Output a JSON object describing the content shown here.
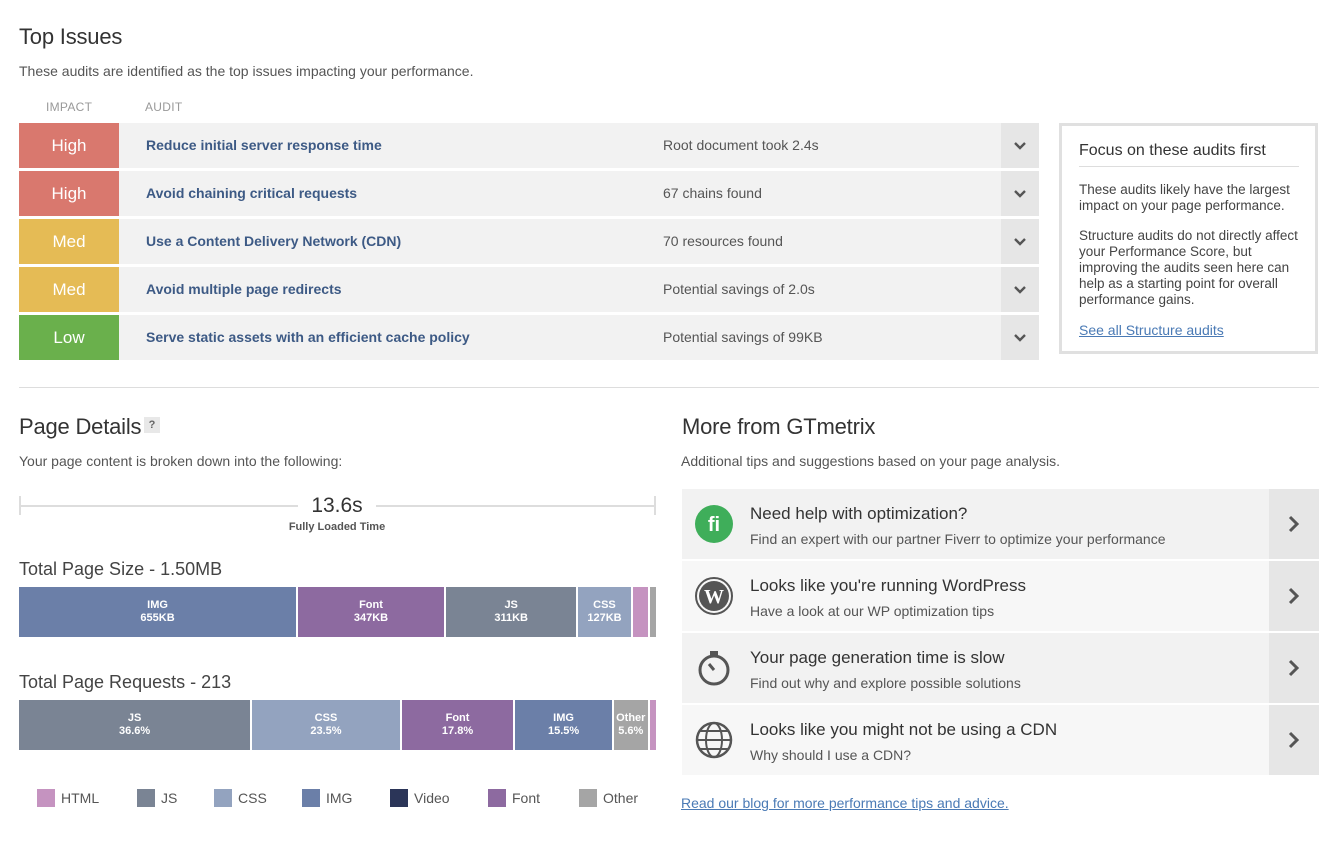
{
  "top_issues": {
    "title": "Top Issues",
    "description": "These audits are identified as the top issues impacting your performance.",
    "col_impact": "IMPACT",
    "col_audit": "AUDIT",
    "rows": [
      {
        "impact": "High",
        "audit": "Reduce initial server response time",
        "detail": "Root document took 2.4s",
        "color": "#d9786e"
      },
      {
        "impact": "High",
        "audit": "Avoid chaining critical requests",
        "detail": "67 chains found",
        "color": "#d9786e"
      },
      {
        "impact": "Med",
        "audit": "Use a Content Delivery Network (CDN)",
        "detail": "70 resources found",
        "color": "#e5bb55"
      },
      {
        "impact": "Med",
        "audit": "Avoid multiple page redirects",
        "detail": "Potential savings of 2.0s",
        "color": "#e5bb55"
      },
      {
        "impact": "Low",
        "audit": "Serve static assets with an efficient cache policy",
        "detail": "Potential savings of 99KB",
        "color": "#6ab04c"
      }
    ]
  },
  "focus_box": {
    "title": "Focus on these audits first",
    "p1": "These audits likely have the largest impact on your page performance.",
    "p2": "Structure audits do not directly affect your Performance Score, but improving the audits seen here can help as a starting point for overall performance gains.",
    "link": "See all Structure audits"
  },
  "page_details": {
    "title": "Page Details",
    "help": "?",
    "description": "Your page content is broken down into the following:",
    "fully_loaded_value": "13.6s",
    "fully_loaded_label": "Fully Loaded Time",
    "size_title": "Total Page Size - 1.50MB",
    "size_segments": [
      {
        "label": "IMG",
        "value": "655KB",
        "share": 655,
        "color": "#6b7fa8"
      },
      {
        "label": "Font",
        "value": "347KB",
        "share": 347,
        "color": "#8d6aa0"
      },
      {
        "label": "JS",
        "value": "311KB",
        "share": 311,
        "color": "#7a8494"
      },
      {
        "label": "CSS",
        "value": "127KB",
        "share": 127,
        "color": "#93a3bf"
      },
      {
        "label": "",
        "value": "",
        "share": 40,
        "color": "#c593c0"
      },
      {
        "label": "",
        "value": "",
        "share": 15,
        "color": "#a5a5a5"
      }
    ],
    "requests_title": "Total Page Requests - 213",
    "request_segments": [
      {
        "label": "JS",
        "value": "36.6%",
        "share": 36.6,
        "color": "#7a8494"
      },
      {
        "label": "CSS",
        "value": "23.5%",
        "share": 23.5,
        "color": "#93a3bf"
      },
      {
        "label": "Font",
        "value": "17.8%",
        "share": 17.8,
        "color": "#8d6aa0"
      },
      {
        "label": "IMG",
        "value": "15.5%",
        "share": 15.5,
        "color": "#6b7fa8"
      },
      {
        "label": "Other",
        "value": "5.6%",
        "share": 5.6,
        "color": "#a5a5a5"
      },
      {
        "label": "",
        "value": "",
        "share": 1.0,
        "color": "#c593c0"
      }
    ],
    "legend": [
      {
        "label": "HTML",
        "color": "#c593c0"
      },
      {
        "label": "JS",
        "color": "#7a8494"
      },
      {
        "label": "CSS",
        "color": "#93a3bf"
      },
      {
        "label": "IMG",
        "color": "#6b7fa8"
      },
      {
        "label": "Video",
        "color": "#2b3558"
      },
      {
        "label": "Font",
        "color": "#8d6aa0"
      },
      {
        "label": "Other",
        "color": "#a5a5a5"
      }
    ]
  },
  "more": {
    "title": "More from GTmetrix",
    "description": "Additional tips and suggestions based on your page analysis.",
    "items": [
      {
        "icon": "fiverr-icon",
        "title": "Need help with optimization?",
        "subtitle": "Find an expert with our partner Fiverr to optimize your performance"
      },
      {
        "icon": "wordpress-icon",
        "title": "Looks like you're running WordPress",
        "subtitle": "Have a look at our WP optimization tips"
      },
      {
        "icon": "stopwatch-icon",
        "title": "Your page generation time is slow",
        "subtitle": "Find out why and explore possible solutions"
      },
      {
        "icon": "globe-icon",
        "title": "Looks like you might not be using a CDN",
        "subtitle": "Why should I use a CDN?"
      }
    ],
    "blog_link": "Read our blog for more performance tips and advice."
  }
}
